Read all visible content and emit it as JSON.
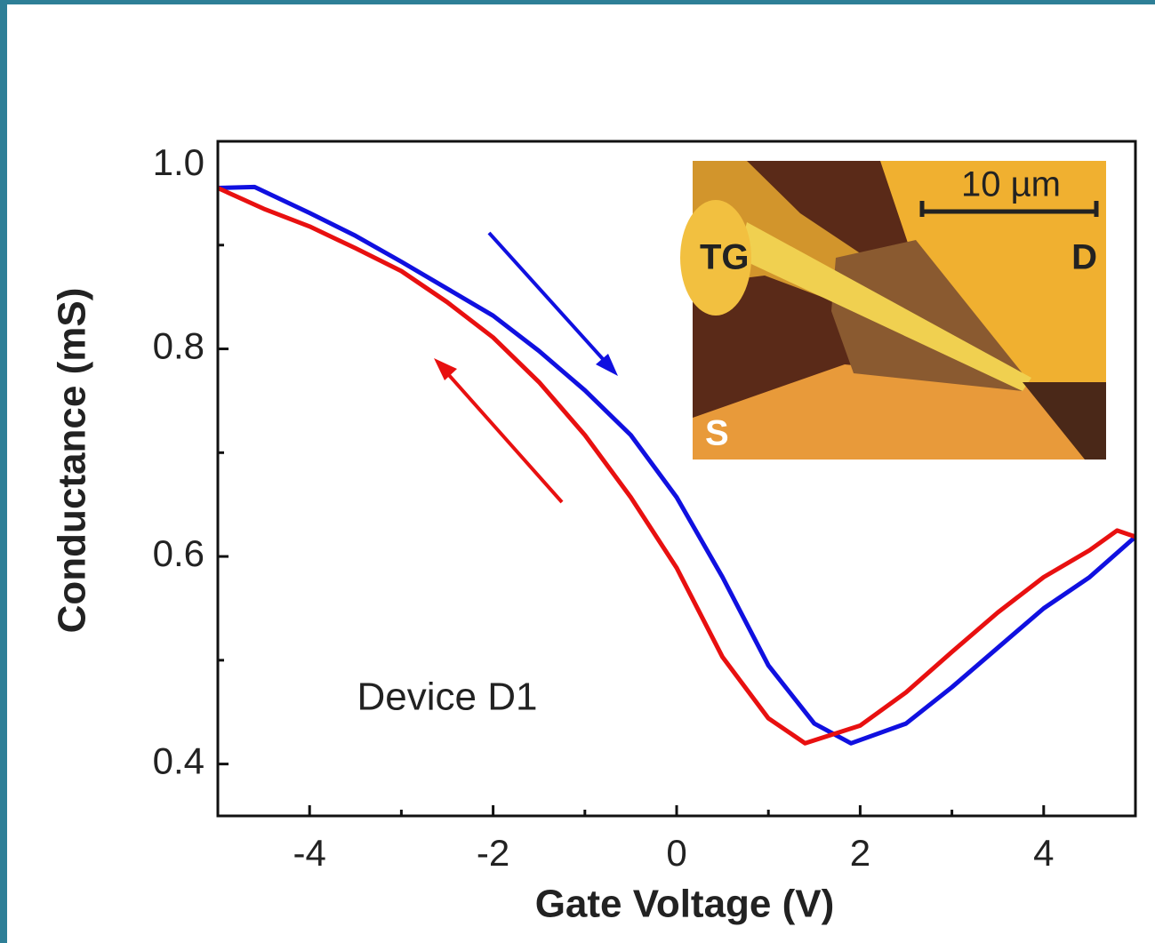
{
  "chart_data": {
    "type": "line",
    "x_label": "Gate Voltage (V)",
    "y_label": "Conductance (mS)",
    "annotation": "Device D1",
    "xlim": [
      -5,
      5
    ],
    "ylim": [
      0.35,
      1.0
    ],
    "xticks": [
      -4,
      -2,
      0,
      2,
      4
    ],
    "xminorticks": [
      -5,
      -3,
      -1,
      1,
      3,
      5
    ],
    "yticks": [
      {
        "value": 1.0,
        "label": "1.0"
      },
      {
        "value": 0.8,
        "label": "0.8"
      },
      {
        "value": 0.6,
        "label": "0.6"
      },
      {
        "value": 0.4,
        "label": "0.4"
      }
    ],
    "yminorticks": [
      0.5,
      0.7,
      0.9
    ],
    "series": [
      {
        "color": "#1010e0",
        "x": [
          -5,
          -4.6,
          -4,
          -3.5,
          -3,
          -2.5,
          -2,
          -1.5,
          -1,
          -0.5,
          0,
          0.5,
          1,
          1.5,
          1.9,
          2.5,
          3,
          3.5,
          4,
          4.5,
          5
        ],
        "values": [
          0.955,
          0.956,
          0.931,
          0.909,
          0.884,
          0.858,
          0.832,
          0.798,
          0.76,
          0.717,
          0.657,
          0.58,
          0.495,
          0.439,
          0.42,
          0.439,
          0.474,
          0.512,
          0.55,
          0.58,
          0.619
        ]
      },
      {
        "color": "#e81010",
        "x": [
          -5,
          -4.5,
          -4,
          -3.5,
          -3,
          -2.5,
          -2,
          -1.5,
          -1,
          -0.5,
          0,
          0.5,
          1,
          1.4,
          2,
          2.5,
          3,
          3.5,
          4,
          4.5,
          4.8,
          5
        ],
        "values": [
          0.955,
          0.935,
          0.918,
          0.897,
          0.875,
          0.845,
          0.811,
          0.768,
          0.717,
          0.657,
          0.589,
          0.503,
          0.444,
          0.42,
          0.437,
          0.469,
          0.508,
          0.546,
          0.58,
          0.606,
          0.625,
          0.619
        ]
      }
    ],
    "inset": {
      "labels": [
        "TG",
        "D",
        "S"
      ],
      "scale_bar": "10 µm"
    }
  }
}
